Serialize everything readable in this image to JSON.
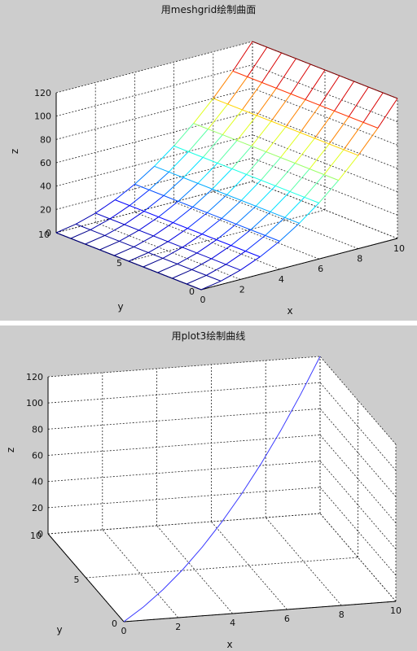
{
  "chart_data": [
    {
      "type": "surface",
      "title": "用meshgrid绘制曲面",
      "xlabel": "x",
      "ylabel": "y",
      "zlabel": "z",
      "xlim": [
        0,
        10
      ],
      "ylim": [
        0,
        10
      ],
      "zlim": [
        0,
        120
      ],
      "xticks": [
        "0",
        "2",
        "4",
        "6",
        "8",
        "10"
      ],
      "yticks": [
        "0",
        "5",
        "10"
      ],
      "zticks": [
        "0",
        "20",
        "40",
        "60",
        "80",
        "100",
        "120"
      ],
      "grid": true,
      "x": [
        0,
        1,
        2,
        3,
        4,
        5,
        6,
        7,
        8,
        9,
        10
      ],
      "y": [
        0,
        1,
        2,
        3,
        4,
        5,
        6,
        7,
        8,
        9,
        10
      ],
      "z_formula": "z = x^2 + 2x",
      "colormap": "jet"
    },
    {
      "type": "line3d",
      "title": "用plot3绘制曲线",
      "xlabel": "x",
      "ylabel": "y",
      "zlabel": "z",
      "xlim": [
        0,
        10
      ],
      "ylim": [
        0,
        10
      ],
      "zlim": [
        0,
        120
      ],
      "xticks": [
        "0",
        "2",
        "4",
        "6",
        "8",
        "10"
      ],
      "yticks": [
        "0",
        "5",
        "10"
      ],
      "zticks": [
        "0",
        "20",
        "40",
        "60",
        "80",
        "100",
        "120"
      ],
      "grid": true,
      "line_color": "#3a3aff",
      "x": [
        0,
        1,
        2,
        3,
        4,
        5,
        6,
        7,
        8,
        9,
        10
      ],
      "y": [
        0,
        1,
        2,
        3,
        4,
        5,
        6,
        7,
        8,
        9,
        10
      ],
      "z": [
        0,
        3,
        8,
        15,
        24,
        35,
        48,
        63,
        80,
        99,
        120
      ]
    }
  ]
}
